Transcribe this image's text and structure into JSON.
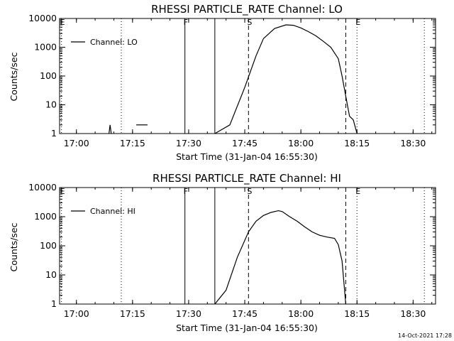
{
  "timestamp": "14-Oct-2021 17:28",
  "chart_data": [
    {
      "type": "line",
      "title": "RHESSI PARTICLE_RATE Channel: LO",
      "xlabel": "Start Time (31-Jan-04 16:55:30)",
      "ylabel": "Counts/sec",
      "yscale": "log",
      "ylim": [
        1,
        10000
      ],
      "xlim": [
        "16:55:30",
        "18:36"
      ],
      "x_ticks": [
        "17:00",
        "17:15",
        "17:30",
        "17:45",
        "18:00",
        "18:15",
        "18:30"
      ],
      "y_ticks": [
        "1",
        "10",
        "100",
        "1000",
        "10000"
      ],
      "legend": {
        "label": "Channel: LO",
        "position": "top-left"
      },
      "markers": [
        {
          "label": "E",
          "time": "16:56",
          "style": "dotted"
        },
        {
          "label": "",
          "time": "17:12",
          "style": "dotted"
        },
        {
          "label": "F",
          "time": "17:29",
          "style": "solid"
        },
        {
          "label": "",
          "time": "17:37",
          "style": "solid"
        },
        {
          "label": "S",
          "time": "17:46",
          "style": "dashed"
        },
        {
          "label": "",
          "time": "18:12",
          "style": "dashed"
        },
        {
          "label": "E",
          "time": "18:15",
          "style": "dotted"
        },
        {
          "label": "",
          "time": "18:33",
          "style": "dotted"
        }
      ],
      "series": [
        {
          "x": [
            "17:09",
            "17:16",
            "17:18",
            "17:19",
            "17:37",
            "17:41",
            "17:45",
            "17:48",
            "17:50",
            "17:53",
            "17:56",
            "17:58",
            "18:00",
            "18:02",
            "18:04",
            "18:06",
            "18:08",
            "18:10",
            "18:11",
            "18:12",
            "18:13",
            "18:14",
            "18:15"
          ],
          "y": [
            2,
            2,
            2,
            2,
            1,
            2,
            40,
            500,
            2000,
            4500,
            6000,
            5800,
            4700,
            3500,
            2500,
            1600,
            1000,
            400,
            100,
            20,
            4,
            3,
            1
          ]
        }
      ]
    },
    {
      "type": "line",
      "title": "RHESSI PARTICLE_RATE Channel: HI",
      "xlabel": "Start Time (31-Jan-04 16:55:30)",
      "ylabel": "Counts/sec",
      "yscale": "log",
      "ylim": [
        1,
        10000
      ],
      "xlim": [
        "16:55:30",
        "18:36"
      ],
      "x_ticks": [
        "17:00",
        "17:15",
        "17:30",
        "17:45",
        "18:00",
        "18:15",
        "18:30"
      ],
      "y_ticks": [
        "1",
        "10",
        "100",
        "1000",
        "10000"
      ],
      "legend": {
        "label": "Channel: HI",
        "position": "top-left"
      },
      "markers": [
        {
          "label": "E",
          "time": "16:56",
          "style": "dotted"
        },
        {
          "label": "",
          "time": "17:12",
          "style": "dotted"
        },
        {
          "label": "F",
          "time": "17:29",
          "style": "solid"
        },
        {
          "label": "",
          "time": "17:37",
          "style": "solid"
        },
        {
          "label": "S",
          "time": "17:46",
          "style": "dashed"
        },
        {
          "label": "",
          "time": "18:12",
          "style": "dashed"
        },
        {
          "label": "E",
          "time": "18:15",
          "style": "dotted"
        },
        {
          "label": "",
          "time": "18:33",
          "style": "dotted"
        }
      ],
      "series": [
        {
          "x": [
            "17:37",
            "17:40",
            "17:43",
            "17:46",
            "17:48",
            "17:50",
            "17:52",
            "17:54",
            "17:55",
            "17:57",
            "17:59",
            "18:01",
            "18:03",
            "18:05",
            "18:07",
            "18:09",
            "18:10",
            "18:11",
            "18:12"
          ],
          "y": [
            1,
            3,
            40,
            300,
            700,
            1100,
            1400,
            1600,
            1500,
            1000,
            700,
            450,
            300,
            230,
            200,
            180,
            110,
            30,
            1
          ]
        }
      ]
    }
  ]
}
